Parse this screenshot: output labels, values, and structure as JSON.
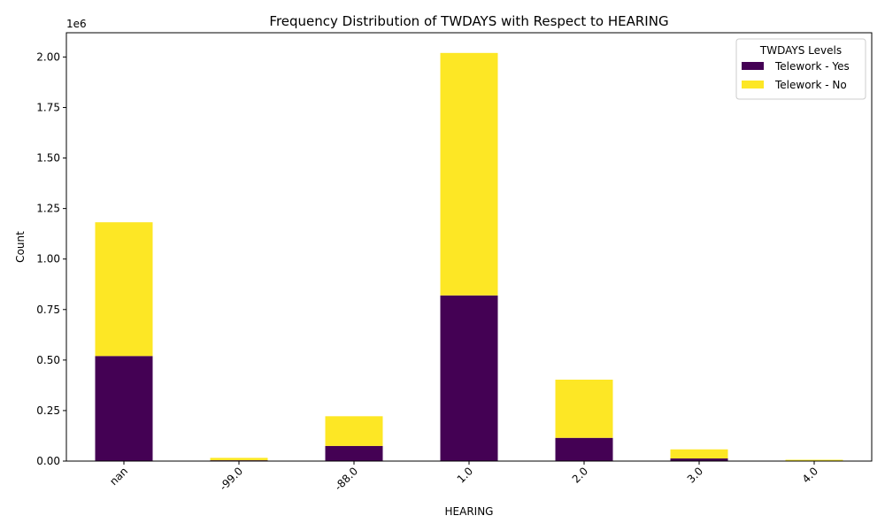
{
  "chart_data": {
    "type": "bar",
    "stacked": true,
    "title": "Frequency Distribution of TWDAYS with Respect to HEARING",
    "xlabel": "HEARING",
    "ylabel": "Count",
    "y_scale_label": "1e6",
    "categories": [
      "nan",
      "-99.0",
      "-88.0",
      "1.0",
      "2.0",
      "3.0",
      "4.0"
    ],
    "series": [
      {
        "name": "Telework - Yes",
        "color": "#440154",
        "values": [
          520000,
          4000,
          75000,
          820000,
          115000,
          13000,
          1500
        ]
      },
      {
        "name": "Telework - No",
        "color": "#fde725",
        "values": [
          662000,
          12000,
          147000,
          1200000,
          288000,
          45000,
          5000
        ]
      }
    ],
    "ylim": [
      0,
      2120000
    ],
    "yticks": [
      0,
      250000,
      500000,
      750000,
      1000000,
      1250000,
      1500000,
      1750000,
      2000000
    ],
    "ytick_labels": [
      "0.00",
      "0.25",
      "0.50",
      "0.75",
      "1.00",
      "1.25",
      "1.50",
      "1.75",
      "2.00"
    ],
    "legend": {
      "title": "TWDAYS Levels",
      "placement": "top-right"
    },
    "grid": false
  }
}
